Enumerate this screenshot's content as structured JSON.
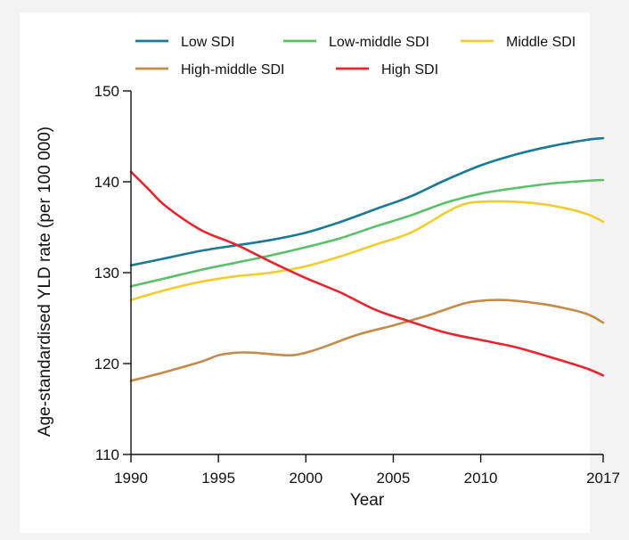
{
  "chart_data": {
    "type": "line",
    "title": "",
    "xlabel": "Year",
    "ylabel": "Age-standardised YLD rate (per 100 000)",
    "xlim": [
      1990,
      2017
    ],
    "ylim": [
      110,
      150
    ],
    "x_ticks": [
      1990,
      1995,
      2000,
      2005,
      2010,
      2017
    ],
    "y_ticks": [
      110,
      120,
      130,
      140,
      150
    ],
    "grid": false,
    "legend_position": "top",
    "series": [
      {
        "name": "Low SDI",
        "color": "#1a7a96",
        "points": [
          [
            1990,
            130.8
          ],
          [
            1992,
            131.6
          ],
          [
            1994,
            132.4
          ],
          [
            1996,
            133.0
          ],
          [
            1998,
            133.6
          ],
          [
            2000,
            134.4
          ],
          [
            2002,
            135.6
          ],
          [
            2004,
            137.0
          ],
          [
            2006,
            138.4
          ],
          [
            2008,
            140.2
          ],
          [
            2010,
            141.8
          ],
          [
            2012,
            143.0
          ],
          [
            2014,
            143.9
          ],
          [
            2016,
            144.6
          ],
          [
            2017,
            144.8
          ]
        ]
      },
      {
        "name": "Low-middle SDI",
        "color": "#5cbf6a",
        "points": [
          [
            1990,
            128.5
          ],
          [
            1992,
            129.4
          ],
          [
            1994,
            130.3
          ],
          [
            1996,
            131.1
          ],
          [
            1998,
            131.9
          ],
          [
            2000,
            132.8
          ],
          [
            2002,
            133.8
          ],
          [
            2004,
            135.1
          ],
          [
            2006,
            136.3
          ],
          [
            2008,
            137.7
          ],
          [
            2010,
            138.7
          ],
          [
            2012,
            139.3
          ],
          [
            2014,
            139.8
          ],
          [
            2016,
            140.1
          ],
          [
            2017,
            140.2
          ]
        ]
      },
      {
        "name": "Middle SDI",
        "color": "#f2cc2d",
        "points": [
          [
            1990,
            127.0
          ],
          [
            1992,
            128.1
          ],
          [
            1994,
            129.0
          ],
          [
            1996,
            129.6
          ],
          [
            1998,
            130.0
          ],
          [
            2000,
            130.7
          ],
          [
            2002,
            131.8
          ],
          [
            2004,
            133.1
          ],
          [
            2006,
            134.4
          ],
          [
            2008,
            136.6
          ],
          [
            2009,
            137.5
          ],
          [
            2010,
            137.8
          ],
          [
            2012,
            137.8
          ],
          [
            2014,
            137.4
          ],
          [
            2016,
            136.5
          ],
          [
            2017,
            135.6
          ]
        ]
      },
      {
        "name": "High-middle SDI",
        "color": "#c58b48",
        "points": [
          [
            1990,
            118.1
          ],
          [
            1992,
            119.1
          ],
          [
            1994,
            120.2
          ],
          [
            1995,
            120.9
          ],
          [
            1996,
            121.2
          ],
          [
            1997,
            121.2
          ],
          [
            1999,
            120.9
          ],
          [
            2000,
            121.2
          ],
          [
            2001,
            121.8
          ],
          [
            2003,
            123.2
          ],
          [
            2005,
            124.2
          ],
          [
            2007,
            125.3
          ],
          [
            2009,
            126.6
          ],
          [
            2010,
            126.9
          ],
          [
            2011,
            127.0
          ],
          [
            2012,
            126.9
          ],
          [
            2014,
            126.4
          ],
          [
            2016,
            125.5
          ],
          [
            2017,
            124.5
          ]
        ]
      },
      {
        "name": "High SDI",
        "color": "#e8252f",
        "points": [
          [
            1990,
            141.1
          ],
          [
            1991,
            139.2
          ],
          [
            1992,
            137.3
          ],
          [
            1994,
            134.7
          ],
          [
            1996,
            133.1
          ],
          [
            1998,
            131.2
          ],
          [
            2000,
            129.4
          ],
          [
            2002,
            127.8
          ],
          [
            2004,
            125.9
          ],
          [
            2006,
            124.6
          ],
          [
            2008,
            123.4
          ],
          [
            2010,
            122.6
          ],
          [
            2012,
            121.8
          ],
          [
            2014,
            120.7
          ],
          [
            2016,
            119.5
          ],
          [
            2017,
            118.7
          ]
        ]
      }
    ]
  }
}
